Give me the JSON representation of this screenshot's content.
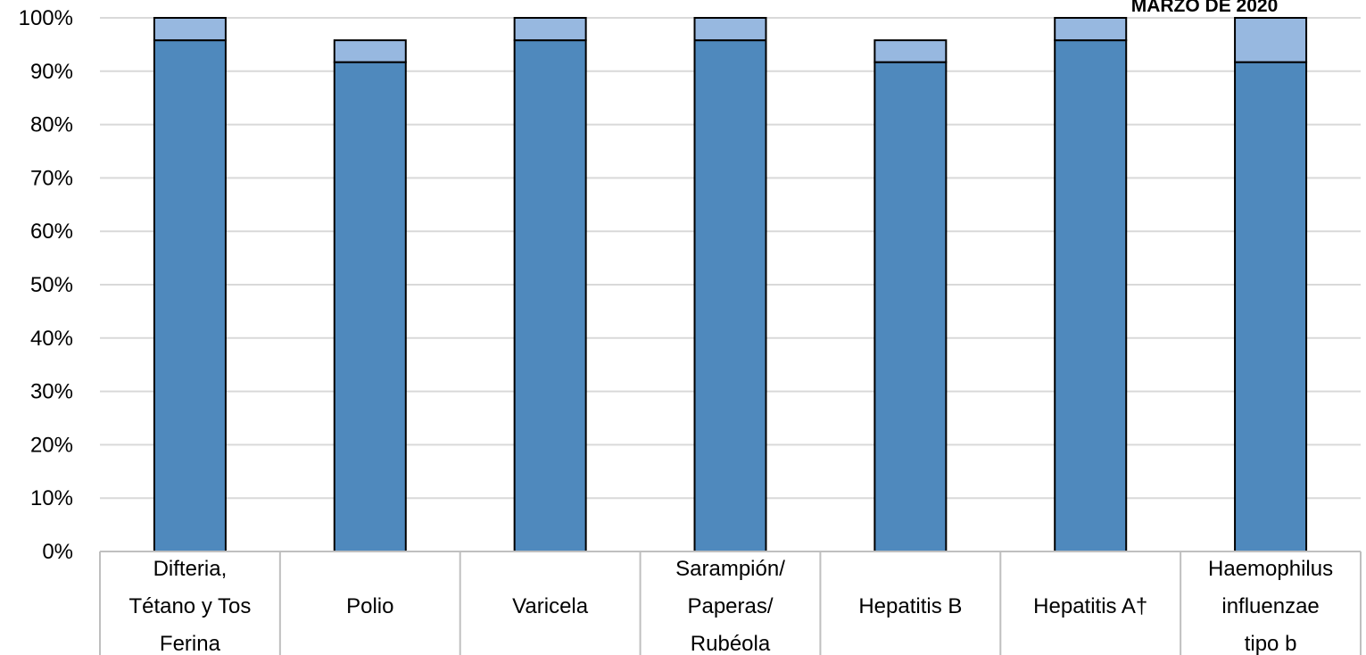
{
  "chart_data": {
    "type": "bar",
    "stacked": true,
    "title": "MARZO DE 2020",
    "xlabel": "",
    "ylabel": "",
    "ylim": [
      0,
      100
    ],
    "y_tick_step": 10,
    "y_tick_suffix": "%",
    "grid": true,
    "categories": [
      [
        "Difteria,",
        "Tétano y Tos",
        "Ferina"
      ],
      [
        "Polio"
      ],
      [
        "Varicela"
      ],
      [
        "Sarampión/",
        "Paperas/",
        "Rubéola"
      ],
      [
        "Hepatitis B"
      ],
      [
        "Hepatitis A†"
      ],
      [
        "Haemophilus",
        "influenzae",
        "tipo b"
      ]
    ],
    "series": [
      {
        "values": [
          95.8,
          91.7,
          95.8,
          95.8,
          91.7,
          95.8,
          91.7
        ],
        "color": "#4f89bd"
      },
      {
        "values": [
          4.2,
          4.1,
          4.2,
          4.2,
          4.1,
          4.2,
          8.3
        ],
        "color": "#97b8e0"
      }
    ]
  }
}
